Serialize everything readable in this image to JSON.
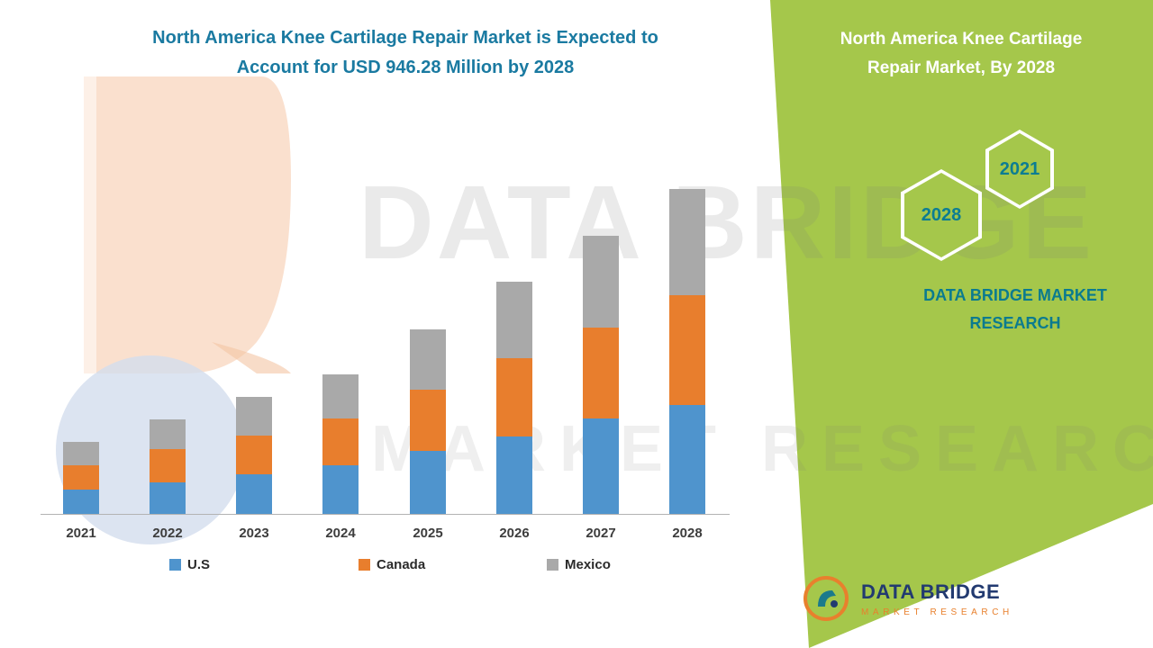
{
  "header": {
    "chart_title_line1": "North America Knee Cartilage Repair Market is Expected to",
    "chart_title_line2": "Account for USD 946.28 Million by 2028"
  },
  "side_panel": {
    "title_line1": "North America Knee Cartilage",
    "title_line2": "Repair Market, By 2028",
    "hexagon_back_year": "2021",
    "hexagon_front_year": "2028",
    "brand_line1": "DATA BRIDGE MARKET",
    "brand_line2": "RESEARCH",
    "background_color": "#a5c74b",
    "text_teal": "#0c7d92"
  },
  "watermark": {
    "line1": "DATA BRIDGE",
    "line2": "MARKET RESEARCH"
  },
  "footer_logo": {
    "name": "DATA BRIDGE",
    "subtitle": "MARKET RESEARCH"
  },
  "chart_data": {
    "type": "bar",
    "stacked": true,
    "unit": "USD Million",
    "categories": [
      "2021",
      "2022",
      "2023",
      "2024",
      "2025",
      "2026",
      "2027",
      "2028"
    ],
    "series": [
      {
        "name": "U.S",
        "color": "#4f94cd",
        "values": [
          71,
          92,
          115,
          142,
          183,
          225,
          278,
          317
        ]
      },
      {
        "name": "Canada",
        "color": "#e87e2d",
        "values": [
          70,
          97,
          113,
          136,
          178,
          228,
          265,
          320
        ]
      },
      {
        "name": "Mexico",
        "color": "#a9a9a9",
        "values": [
          68,
          86,
          113,
          128,
          176,
          223,
          267,
          309.28
        ]
      }
    ],
    "total_2028": 946.28,
    "ylim": [
      0,
      1000
    ],
    "y_axis_labels_visible": false,
    "grid": false,
    "legend_position": "bottom"
  }
}
